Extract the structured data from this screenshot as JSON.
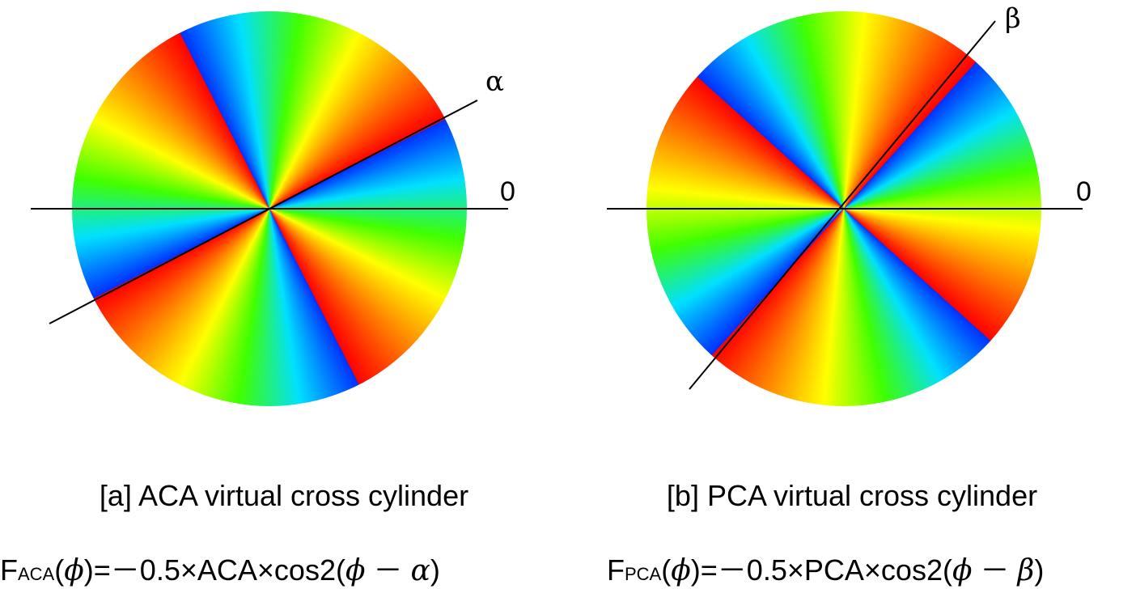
{
  "panel_a": {
    "angle_symbol": "α",
    "zero_label": "0",
    "caption": "[a] ACA virtual cross cylinder",
    "formula": {
      "prefix": "F",
      "subscript": "ACA",
      "open": "(",
      "phi": "ϕ",
      "mid": ")=－0.5×ACA×cos2(",
      "minus": " － ",
      "angle": "α",
      "close": ")"
    },
    "axis_angle_deg": 27,
    "hue_rotation_deg": 0
  },
  "panel_b": {
    "angle_symbol": "β",
    "zero_label": "0",
    "caption": "[b] PCA virtual cross cylinder",
    "formula": {
      "prefix": "F",
      "subscript": "PCA",
      "open": "(",
      "phi": "ϕ",
      "mid": ")=－0.5×PCA×cos2(",
      "minus": " － ",
      "angle": "β",
      "close": ")"
    },
    "axis_angle_deg": 48,
    "hue_rotation_deg": 0
  },
  "colors": {
    "red": "#ff0000",
    "orange": "#ff8000",
    "yellow": "#ffff00",
    "green": "#40ff00",
    "cyan": "#00e0ff",
    "blue": "#0030ff"
  }
}
